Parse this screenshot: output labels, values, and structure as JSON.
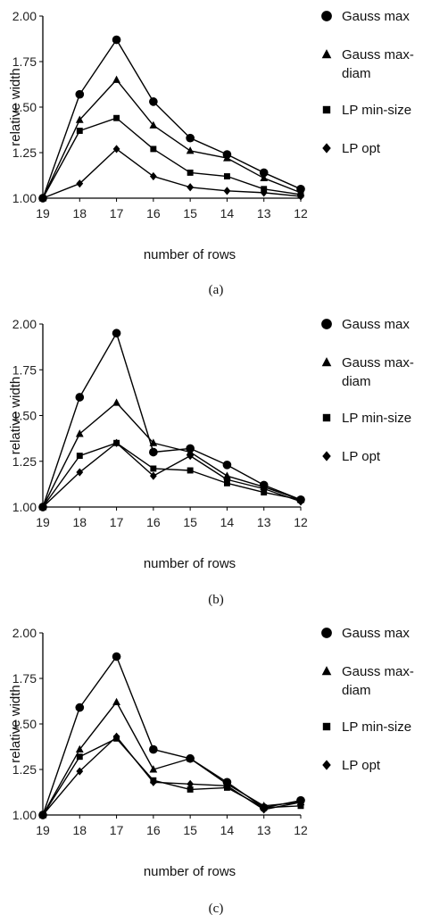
{
  "chart_data": [
    {
      "type": "line",
      "caption": "(a)",
      "xlabel": "number of rows",
      "ylabel": "relative width",
      "categories": [
        "19",
        "18",
        "17",
        "16",
        "15",
        "14",
        "13",
        "12"
      ],
      "ylim": [
        1.0,
        2.0
      ],
      "yticks": [
        "1.00",
        "1.25",
        "1.50",
        "1.75",
        "2.00"
      ],
      "grid": false,
      "legend_position": "right",
      "series": [
        {
          "name": "Gauss max",
          "marker": "circle",
          "values": [
            1.0,
            1.57,
            1.87,
            1.53,
            1.33,
            1.24,
            1.14,
            1.05
          ]
        },
        {
          "name": "Gauss max-diam",
          "name_lines": [
            "Gauss max-",
            "diam"
          ],
          "marker": "triangle",
          "values": [
            1.0,
            1.43,
            1.65,
            1.4,
            1.26,
            1.22,
            1.11,
            1.03
          ]
        },
        {
          "name": "LP min-size",
          "marker": "square",
          "values": [
            1.0,
            1.37,
            1.44,
            1.27,
            1.14,
            1.12,
            1.05,
            1.02
          ]
        },
        {
          "name": "LP opt",
          "marker": "diamond",
          "values": [
            1.0,
            1.08,
            1.27,
            1.12,
            1.06,
            1.04,
            1.03,
            1.01
          ]
        }
      ]
    },
    {
      "type": "line",
      "caption": "(b)",
      "xlabel": "number of rows",
      "ylabel": "relative width",
      "categories": [
        "19",
        "18",
        "17",
        "16",
        "15",
        "14",
        "13",
        "12"
      ],
      "ylim": [
        1.0,
        2.0
      ],
      "yticks": [
        "1.00",
        "1.25",
        "1.50",
        "1.75",
        "2.00"
      ],
      "grid": false,
      "legend_position": "right",
      "series": [
        {
          "name": "Gauss max",
          "marker": "circle",
          "values": [
            1.0,
            1.6,
            1.95,
            1.3,
            1.32,
            1.23,
            1.12,
            1.04
          ]
        },
        {
          "name": "Gauss max-diam",
          "name_lines": [
            "Gauss max-",
            "diam"
          ],
          "marker": "triangle",
          "values": [
            1.0,
            1.4,
            1.57,
            1.35,
            1.3,
            1.17,
            1.11,
            1.04
          ]
        },
        {
          "name": "LP min-size",
          "marker": "square",
          "values": [
            1.0,
            1.28,
            1.35,
            1.21,
            1.2,
            1.13,
            1.08,
            1.04
          ]
        },
        {
          "name": "LP opt",
          "marker": "diamond",
          "values": [
            1.0,
            1.19,
            1.35,
            1.17,
            1.28,
            1.15,
            1.1,
            1.03
          ]
        }
      ]
    },
    {
      "type": "line",
      "caption": "(c)",
      "xlabel": "number of rows",
      "ylabel": "relative width",
      "categories": [
        "19",
        "18",
        "17",
        "16",
        "15",
        "14",
        "13",
        "12"
      ],
      "ylim": [
        1.0,
        2.0
      ],
      "yticks": [
        "1.00",
        "1.25",
        "1.50",
        "1.75",
        "2.00"
      ],
      "grid": false,
      "legend_position": "right",
      "series": [
        {
          "name": "Gauss max",
          "marker": "circle",
          "values": [
            1.0,
            1.59,
            1.87,
            1.36,
            1.31,
            1.18,
            1.04,
            1.08
          ]
        },
        {
          "name": "Gauss max-diam",
          "name_lines": [
            "Gauss max-",
            "diam"
          ],
          "marker": "triangle",
          "values": [
            1.0,
            1.36,
            1.62,
            1.25,
            1.31,
            1.17,
            1.05,
            1.07
          ]
        },
        {
          "name": "LP min-size",
          "marker": "square",
          "values": [
            1.0,
            1.32,
            1.42,
            1.19,
            1.14,
            1.15,
            1.04,
            1.05
          ]
        },
        {
          "name": "LP opt",
          "marker": "diamond",
          "values": [
            1.0,
            1.24,
            1.43,
            1.18,
            1.17,
            1.16,
            1.03,
            1.07
          ]
        }
      ]
    }
  ]
}
